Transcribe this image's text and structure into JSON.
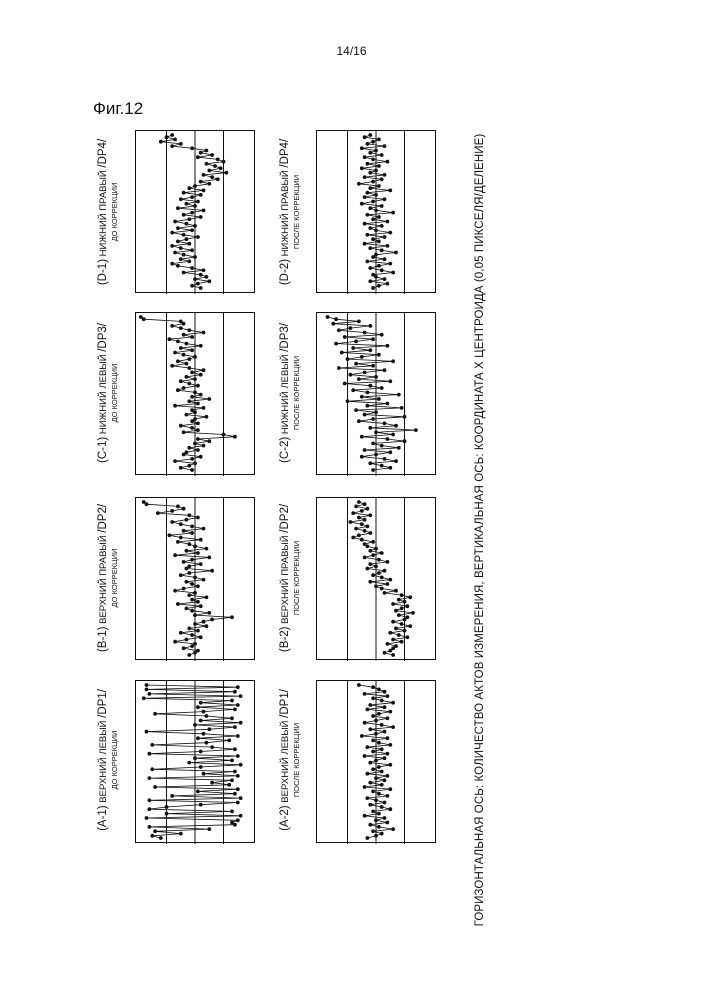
{
  "page_number": "14/16",
  "figure_label": "Фиг.12",
  "axis_caption": "ГОРИЗОНТАЛЬНАЯ ОСЬ: КОЛИЧЕСТВО АКТОВ ИЗМЕРЕНИЯ, ВЕРТИКАЛЬНАЯ ОСЬ: КООРДИНАТА X ЦЕНТРОИДА (0,05 ПИКСЕЛЯ/ДЕЛЕНИЕ)",
  "panels": [
    {
      "id": "A-1",
      "code": "(A-1)",
      "position": "ВЕРХНИЙ ЛЕВЫЙ",
      "dp": "/DP1/",
      "state": "ДО КОРРЕКЦИИ"
    },
    {
      "id": "B-1",
      "code": "(B-1)",
      "position": "ВЕРХНИЙ ПРАВЫЙ",
      "dp": "/DP2/",
      "state": "ДО КОРРЕКЦИИ"
    },
    {
      "id": "C-1",
      "code": "(C-1)",
      "position": "НИЖНИЙ ЛЕВЫЙ",
      "dp": "/DP3/",
      "state": "ДО КОРРЕКЦИИ"
    },
    {
      "id": "D-1",
      "code": "(D-1)",
      "position": "НИЖНИЙ ПРАВЫЙ",
      "dp": "/DP4/",
      "state": "ДО КОРРЕКЦИИ"
    },
    {
      "id": "A-2",
      "code": "(A-2)",
      "position": "ВЕРХНИЙ ЛЕВЫЙ",
      "dp": "/DP1/",
      "state": "ПОСЛЕ КОРРЕКЦИИ"
    },
    {
      "id": "B-2",
      "code": "(B-2)",
      "position": "ВЕРХНИЙ ПРАВЫЙ",
      "dp": "/DP2/",
      "state": "ПОСЛЕ КОРРЕКЦИИ"
    },
    {
      "id": "C-2",
      "code": "(C-2)",
      "position": "НИЖНИЙ ЛЕВЫЙ",
      "dp": "/DP3/",
      "state": "ПОСЛЕ КОРРЕКЦИИ"
    },
    {
      "id": "D-2",
      "code": "(D-2)",
      "position": "НИЖНИЙ ПРАВЫЙ",
      "dp": "/DP4/",
      "state": "ПОСЛЕ КОРРЕКЦИИ"
    }
  ],
  "chart_data": [
    {
      "type": "line",
      "id": "A-1",
      "y_range": [
        0,
        4
      ],
      "gridlines_y": [
        1,
        2,
        3
      ],
      "n_points": 70,
      "values": [
        0.3,
        3.5,
        0.3,
        3.4,
        0.4,
        3.6,
        0.2,
        3.3,
        2.2,
        3.5,
        2.1,
        3.4,
        2.3,
        0.6,
        2.4,
        3.3,
        2.2,
        3.6,
        2.0,
        3.4,
        2.5,
        0.3,
        2.3,
        3.5,
        2.1,
        3.2,
        2.4,
        0.5,
        2.6,
        3.4,
        2.2,
        0.4,
        3.5,
        2.0,
        3.3,
        1.8,
        3.6,
        2.2,
        0.5,
        3.4,
        2.3,
        3.5,
        0.4,
        3.3,
        2.6,
        3.2,
        0.6,
        3.5,
        2.1,
        3.4,
        1.2,
        3.6,
        0.4,
        3.5,
        2.2,
        1.0,
        0.4,
        3.3,
        1.0,
        3.6,
        0.3,
        3.5,
        3.3,
        3.4,
        0.4,
        2.5,
        0.6,
        1.5,
        0.5,
        0.8
      ]
    },
    {
      "type": "line",
      "id": "B-1",
      "y_range": [
        0,
        4
      ],
      "gridlines_y": [
        1,
        2,
        3
      ],
      "n_points": 70,
      "values": [
        0.2,
        0.3,
        1.4,
        1.6,
        1.2,
        0.7,
        1.8,
        2.1,
        1.7,
        1.2,
        1.5,
        1.9,
        2.3,
        1.6,
        1.9,
        1.1,
        1.5,
        2.2,
        1.4,
        1.8,
        2.0,
        2.4,
        1.7,
        2.1,
        1.3,
        2.5,
        1.9,
        1.6,
        2.2,
        1.8,
        1.7,
        2.6,
        1.8,
        1.5,
        2.0,
        2.3,
        1.7,
        1.9,
        2.1,
        1.6,
        1.3,
        2.0,
        1.8,
        2.4,
        1.9,
        2.1,
        1.4,
        2.2,
        1.7,
        1.9,
        2.5,
        2.0,
        3.3,
        2.6,
        2.3,
        2.0,
        2.4,
        1.8,
        2.1,
        1.5,
        1.9,
        2.2,
        1.7,
        1.3,
        2.0,
        1.9,
        1.6,
        2.1,
        2.0,
        1.8
      ]
    },
    {
      "type": "line",
      "id": "C-1",
      "y_range": [
        0,
        4
      ],
      "gridlines_y": [
        1,
        2,
        3
      ],
      "n_points": 70,
      "values": [
        0.1,
        0.2,
        1.5,
        1.6,
        1.2,
        1.5,
        1.8,
        2.3,
        1.6,
        1.9,
        1.1,
        1.4,
        1.7,
        2.2,
        1.5,
        1.9,
        1.3,
        1.6,
        2.0,
        1.8,
        1.4,
        1.7,
        1.2,
        1.8,
        2.3,
        1.9,
        2.2,
        1.7,
        2.0,
        1.5,
        1.8,
        2.1,
        1.6,
        1.4,
        2.0,
        2.2,
        1.9,
        2.5,
        1.8,
        2.1,
        1.3,
        2.3,
        1.9,
        2.0,
        1.7,
        2.4,
        2.0,
        1.9,
        2.1,
        1.5,
        1.9,
        2.1,
        1.6,
        3.0,
        3.4,
        2.1,
        2.5,
        2.0,
        2.3,
        1.8,
        2.1,
        1.7,
        1.6,
        2.2,
        1.9,
        1.3,
        2.0,
        1.8,
        1.5,
        1.9
      ]
    },
    {
      "type": "line",
      "id": "D-1",
      "y_range": [
        0,
        4
      ],
      "gridlines_y": [
        1,
        2,
        3
      ],
      "n_points": 70,
      "values": [
        1.2,
        1.0,
        1.3,
        0.8,
        1.5,
        1.2,
        1.9,
        2.4,
        2.2,
        2.6,
        2.1,
        2.8,
        3.0,
        2.4,
        2.7,
        2.9,
        2.5,
        3.1,
        2.3,
        2.6,
        2.8,
        2.2,
        2.5,
        2.0,
        1.8,
        2.3,
        1.6,
        2.2,
        1.9,
        1.5,
        2.1,
        1.7,
        2.0,
        1.4,
        2.3,
        1.9,
        1.6,
        2.2,
        1.8,
        1.3,
        1.7,
        2.0,
        1.4,
        1.9,
        1.2,
        1.6,
        2.1,
        1.7,
        1.4,
        1.8,
        1.2,
        1.5,
        1.9,
        1.3,
        1.6,
        2.0,
        1.5,
        1.8,
        1.2,
        1.4,
        1.9,
        2.3,
        1.6,
        2.2,
        2.4,
        2.0,
        2.5,
        2.1,
        1.9,
        2.2
      ]
    },
    {
      "type": "line",
      "id": "A-2",
      "y_range": [
        0,
        4
      ],
      "gridlines_y": [
        1,
        2,
        3
      ],
      "n_points": 70,
      "values": [
        1.4,
        1.9,
        2.1,
        2.3,
        1.6,
        2.4,
        1.9,
        2.2,
        2.6,
        1.8,
        2.3,
        1.7,
        2.5,
        2.1,
        1.9,
        2.4,
        2.0,
        1.6,
        2.2,
        2.6,
        1.8,
        2.3,
        2.0,
        1.5,
        2.4,
        1.9,
        2.1,
        2.5,
        1.7,
        2.2,
        1.9,
        2.4,
        1.6,
        2.3,
        2.0,
        1.8,
        2.5,
        2.1,
        1.9,
        2.2,
        1.7,
        2.4,
        2.0,
        2.3,
        1.8,
        2.2,
        1.6,
        2.5,
        1.9,
        2.1,
        2.4,
        1.7,
        2.0,
        2.3,
        1.8,
        2.2,
        2.5,
        1.9,
        2.1,
        1.6,
        2.3,
        2.0,
        2.4,
        1.8,
        2.1,
        2.6,
        1.9,
        2.2,
        2.0,
        1.7
      ]
    },
    {
      "type": "line",
      "id": "B-2",
      "y_range": [
        0,
        4
      ],
      "gridlines_y": [
        1,
        2,
        3
      ],
      "n_points": 70,
      "values": [
        1.4,
        1.6,
        1.3,
        1.7,
        1.5,
        1.2,
        1.8,
        1.4,
        1.6,
        1.1,
        1.5,
        1.7,
        1.3,
        1.6,
        1.8,
        1.4,
        1.2,
        1.5,
        1.9,
        1.6,
        1.7,
        2.0,
        1.8,
        2.2,
        1.9,
        1.6,
        2.1,
        2.4,
        1.8,
        2.0,
        1.7,
        2.3,
        2.1,
        1.9,
        2.2,
        2.5,
        1.8,
        2.4,
        2.0,
        2.2,
        2.7,
        2.3,
        2.9,
        3.2,
        2.8,
        3.0,
        2.6,
        3.1,
        2.9,
        2.7,
        3.3,
        2.8,
        3.1,
        3.0,
        2.6,
        2.9,
        3.2,
        2.7,
        3.0,
        2.5,
        2.8,
        3.1,
        2.6,
        2.9,
        2.4,
        2.7,
        2.6,
        2.5,
        2.3,
        2.6
      ]
    },
    {
      "type": "line",
      "id": "C-2",
      "y_range": [
        0,
        4
      ],
      "gridlines_y": [
        1,
        2,
        3
      ],
      "n_points": 70,
      "values": [
        0.3,
        0.6,
        1.4,
        0.5,
        1.8,
        1.1,
        0.7,
        1.6,
        2.2,
        0.9,
        1.9,
        1.3,
        0.6,
        2.4,
        1.2,
        1.8,
        0.8,
        2.1,
        1.5,
        1.0,
        2.6,
        1.3,
        1.9,
        0.7,
        2.3,
        1.6,
        1.1,
        2.0,
        1.4,
        2.5,
        0.9,
        1.8,
        2.2,
        1.2,
        1.7,
        2.8,
        1.5,
        2.1,
        1.0,
        2.4,
        1.7,
        2.9,
        1.3,
        2.0,
        1.6,
        3.0,
        1.9,
        1.4,
        2.3,
        2.7,
        1.8,
        3.4,
        2.0,
        2.6,
        1.5,
        2.4,
        3.0,
        1.9,
        2.2,
        2.8,
        1.6,
        2.5,
        2.0,
        1.5,
        2.3,
        2.7,
        1.8,
        2.2,
        2.5,
        1.9
      ]
    },
    {
      "type": "line",
      "id": "D-2",
      "y_range": [
        0,
        4
      ],
      "gridlines_y": [
        1,
        2,
        3
      ],
      "n_points": 70,
      "values": [
        1.8,
        1.6,
        2.1,
        1.9,
        1.7,
        2.3,
        1.5,
        2.0,
        1.8,
        2.2,
        1.6,
        1.9,
        2.4,
        1.7,
        2.1,
        1.5,
        2.0,
        1.8,
        2.3,
        1.6,
        2.2,
        1.9,
        1.4,
        2.1,
        1.8,
        2.5,
        1.7,
        2.0,
        1.6,
        2.3,
        1.9,
        1.5,
        2.2,
        1.8,
        2.0,
        2.6,
        1.7,
        2.1,
        1.9,
        2.4,
        1.6,
        2.2,
        1.8,
        2.0,
        2.5,
        1.7,
        2.3,
        1.9,
        2.1,
        1.6,
        2.4,
        1.8,
        2.2,
        2.7,
        2.0,
        1.9,
        2.3,
        1.7,
        2.5,
        2.1,
        1.8,
        2.2,
        2.6,
        1.9,
        2.0,
        2.3,
        1.8,
        2.4,
        2.1,
        1.9
      ]
    }
  ]
}
